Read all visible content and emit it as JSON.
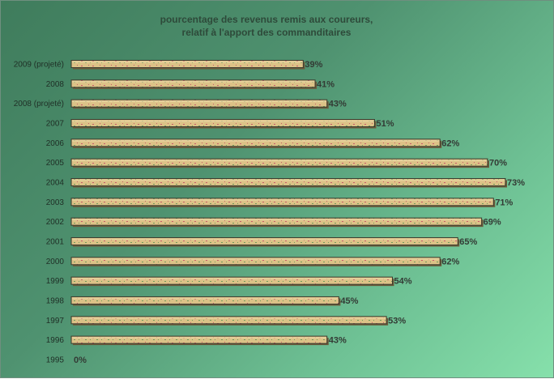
{
  "chart_data": {
    "type": "bar",
    "orientation": "horizontal",
    "title": "pourcentage des revenus remis aux coureurs,",
    "subtitle": "relatif à l'apport des commanditaires",
    "categories": [
      "2009 (projeté)",
      "2008",
      "2008 (projeté)",
      "2007",
      "2006",
      "2005",
      "2004",
      "2003",
      "2002",
      "2001",
      "2000",
      "1999",
      "1998",
      "1997",
      "1996",
      "1995"
    ],
    "values": [
      39,
      41,
      43,
      51,
      62,
      70,
      73,
      71,
      69,
      65,
      62,
      54,
      45,
      53,
      43,
      0
    ],
    "value_labels": [
      "39%",
      "41%",
      "43%",
      "51%",
      "62%",
      "70%",
      "73%",
      "71%",
      "69%",
      "65%",
      "62%",
      "54%",
      "45%",
      "53%",
      "43%",
      "0%"
    ],
    "xlim": [
      0,
      73
    ],
    "grid": false,
    "legend": "none",
    "colors": {
      "bar_fill": "#dcc287",
      "bar_top": "#e9d6a4",
      "bar_border": "#3b3b2e",
      "bar_shadow": "#6b5a3a",
      "speckle_red": "#c75a6a",
      "speckle_green": "#6f9a5a",
      "text": "#1f2f26",
      "title": "#2e4a3a"
    }
  }
}
